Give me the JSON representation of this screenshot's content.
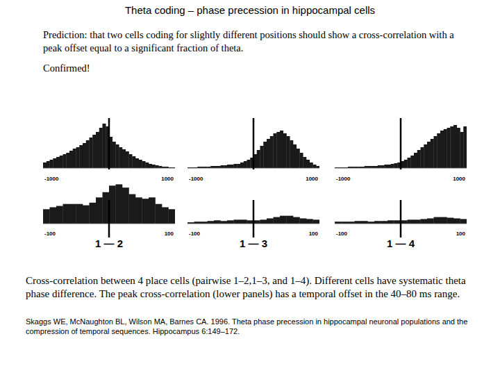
{
  "title": "Theta coding – phase precession in hippocampal cells",
  "prediction": "Prediction: that two cells coding for slightly different positions should show a cross-correlation with a peak offset equal to a significant fraction of theta.",
  "confirmed": "Confirmed!",
  "caption": "Cross-correlation between 4 place cells (pairwise 1–2,1–3, and 1–4). Different cells have systematic theta phase difference. The peak cross-correlation (lower panels) has a temporal offset in the 40–80 ms range.",
  "citation": "Skaggs WE, McNaughton BL, Wilson MA, Barnes CA. 1996. Theta phase precession in hippocampal neuronal populations and the compression of temporal sequences. Hippocampus 6:149–172.",
  "chart_data": [
    {
      "type": "histogram",
      "color": "#1a1a1a",
      "tick_labels": "x",
      "center_line": 0,
      "bins": [
        -1000,
        -950,
        -900,
        -850,
        -800,
        -750,
        -700,
        -650,
        -600,
        -550,
        -500,
        -450,
        -400,
        -350,
        -300,
        -250,
        -200,
        -150,
        -100,
        -50,
        0,
        50,
        100,
        150,
        200,
        250,
        300,
        350,
        400,
        450,
        500,
        550,
        600,
        650,
        700,
        750,
        800,
        850,
        900,
        950,
        1000
      ],
      "values": [
        8,
        10,
        12,
        14,
        16,
        18,
        20,
        22,
        25,
        28,
        30,
        33,
        36,
        40,
        44,
        48,
        52,
        58,
        64,
        60,
        45,
        38,
        34,
        30,
        27,
        24,
        20,
        17,
        14,
        12,
        10,
        8,
        6,
        5,
        4,
        3,
        2,
        2,
        1,
        1
      ],
      "xlim": [
        -1000,
        1000
      ],
      "xticks": [
        -1000,
        1000
      ],
      "ylim": [
        0,
        70
      ],
      "yticks": []
    },
    {
      "type": "histogram",
      "color": "#1a1a1a",
      "tick_labels": "x",
      "center_line": 0,
      "bins": [
        -1000,
        -950,
        -900,
        -850,
        -800,
        -750,
        -700,
        -650,
        -600,
        -550,
        -500,
        -450,
        -400,
        -350,
        -300,
        -250,
        -200,
        -150,
        -100,
        -50,
        0,
        50,
        100,
        150,
        200,
        250,
        300,
        350,
        400,
        450,
        500,
        550,
        600,
        650,
        700,
        750,
        800,
        850,
        900,
        950,
        1000
      ],
      "values": [
        1,
        1,
        1,
        2,
        2,
        2,
        2,
        3,
        3,
        3,
        4,
        4,
        5,
        5,
        6,
        6,
        8,
        10,
        12,
        15,
        20,
        26,
        32,
        38,
        42,
        46,
        50,
        52,
        54,
        50,
        46,
        40,
        34,
        28,
        22,
        16,
        12,
        8,
        5,
        3
      ],
      "xlim": [
        -1000,
        1000
      ],
      "xticks": [
        -1000,
        1000
      ],
      "ylim": [
        0,
        70
      ],
      "yticks": []
    },
    {
      "type": "histogram",
      "color": "#1a1a1a",
      "tick_labels": "x",
      "center_line": 0,
      "bins": [
        -1000,
        -950,
        -900,
        -850,
        -800,
        -750,
        -700,
        -650,
        -600,
        -550,
        -500,
        -450,
        -400,
        -350,
        -300,
        -250,
        -200,
        -150,
        -100,
        -50,
        0,
        50,
        100,
        150,
        200,
        250,
        300,
        350,
        400,
        450,
        500,
        550,
        600,
        650,
        700,
        750,
        800,
        850,
        900,
        950,
        1000
      ],
      "values": [
        1,
        1,
        1,
        1,
        2,
        2,
        2,
        2,
        2,
        3,
        3,
        3,
        3,
        4,
        4,
        5,
        5,
        6,
        7,
        8,
        10,
        12,
        15,
        18,
        22,
        26,
        30,
        34,
        38,
        42,
        46,
        50,
        54,
        56,
        58,
        60,
        62,
        58,
        52,
        60
      ],
      "xlim": [
        -1000,
        1000
      ],
      "xticks": [
        -1000,
        1000
      ],
      "ylim": [
        0,
        70
      ],
      "yticks": []
    },
    {
      "type": "histogram",
      "color": "#1a1a1a",
      "tick_labels": "x",
      "center_line": 0,
      "xlabel": "1 — 2",
      "bins": [
        -100,
        -90,
        -80,
        -70,
        -60,
        -50,
        -40,
        -30,
        -20,
        -10,
        0,
        10,
        20,
        30,
        40,
        50,
        60,
        70,
        80,
        90,
        100
      ],
      "values": [
        22,
        25,
        27,
        30,
        30,
        30,
        28,
        32,
        40,
        48,
        58,
        60,
        55,
        45,
        40,
        38,
        40,
        30,
        25,
        22
      ],
      "xlim": [
        -100,
        100
      ],
      "xticks": [
        -100,
        100
      ],
      "ylim": [
        0,
        70
      ],
      "yticks": []
    },
    {
      "type": "histogram",
      "color": "#1a1a1a",
      "tick_labels": "x",
      "center_line": 0,
      "xlabel": "1 — 3",
      "bins": [
        -100,
        -90,
        -80,
        -70,
        -60,
        -50,
        -40,
        -30,
        -20,
        -10,
        0,
        10,
        20,
        30,
        40,
        50,
        60,
        70,
        80,
        90,
        100
      ],
      "values": [
        2,
        3,
        3,
        4,
        5,
        4,
        5,
        6,
        6,
        5,
        5,
        6,
        8,
        10,
        12,
        12,
        10,
        8,
        7,
        6
      ],
      "xlim": [
        -100,
        100
      ],
      "xticks": [
        -100,
        100
      ],
      "ylim": [
        0,
        70
      ],
      "yticks": []
    },
    {
      "type": "histogram",
      "color": "#1a1a1a",
      "tick_labels": "x",
      "center_line": 0,
      "xlabel": "1 — 4",
      "bins": [
        -100,
        -90,
        -80,
        -70,
        -60,
        -50,
        -40,
        -30,
        -20,
        -10,
        0,
        10,
        20,
        30,
        40,
        50,
        60,
        70,
        80,
        90,
        100
      ],
      "values": [
        3,
        3,
        3,
        4,
        4,
        3,
        4,
        4,
        5,
        5,
        5,
        6,
        6,
        7,
        8,
        10,
        10,
        9,
        8,
        7
      ],
      "xlim": [
        -100,
        100
      ],
      "xticks": [
        -100,
        100
      ],
      "ylim": [
        0,
        70
      ],
      "yticks": []
    }
  ]
}
